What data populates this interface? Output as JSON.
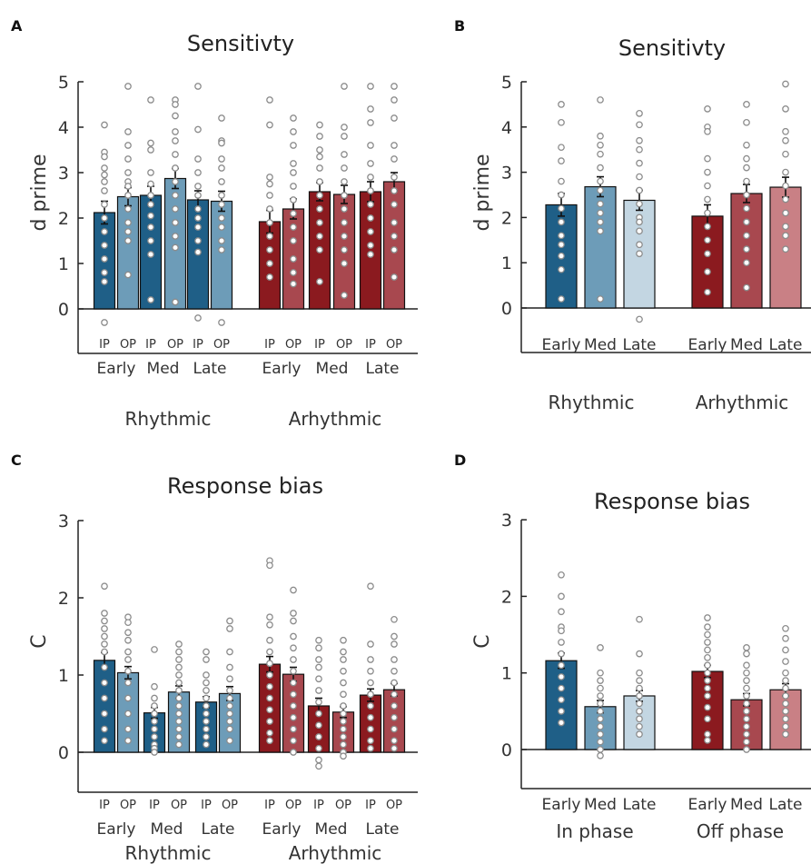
{
  "colors": {
    "rhythmic_dark": "#1f5f87",
    "rhythmic_mid": "#6d9cb8",
    "rhythmic_light": "#c3d6e2",
    "arrhythmic_dark": "#8b1a1f",
    "arrhythmic_mid": "#a8484f",
    "arrhythmic_light": "#c98085",
    "dot_stroke": "#8c8c8c"
  },
  "chart_data": [
    {
      "panel": "A",
      "type": "bar",
      "title": "Sensitivty",
      "ylabel": "d prime",
      "ylim": [
        -1,
        5
      ],
      "yticks": [
        0,
        1,
        2,
        3,
        4,
        5
      ],
      "bar_labels": [
        "IP",
        "OP",
        "IP",
        "OP",
        "IP",
        "OP",
        "IP",
        "OP",
        "IP",
        "OP",
        "IP",
        "OP"
      ],
      "subgroup_labels": [
        "Early",
        "Med",
        "Late",
        "Early",
        "Med",
        "Late"
      ],
      "group_labels": [
        "Rhythmic",
        "Arhythmic"
      ],
      "values": [
        2.12,
        2.47,
        2.5,
        2.87,
        2.4,
        2.37,
        1.92,
        2.2,
        2.58,
        2.52,
        2.58,
        2.8
      ],
      "errors": [
        0.25,
        0.2,
        0.2,
        0.22,
        0.2,
        0.22,
        0.25,
        0.22,
        0.2,
        0.2,
        0.22,
        0.2
      ],
      "points": [
        [
          4.05,
          3.45,
          3.35,
          3.1,
          2.95,
          2.8,
          2.6,
          2.3,
          2.0,
          1.7,
          1.4,
          1.1,
          0.8,
          0.6,
          -0.3
        ],
        [
          4.9,
          3.9,
          3.6,
          3.3,
          3.0,
          2.8,
          2.7,
          2.5,
          2.2,
          1.9,
          1.7,
          1.5,
          0.75
        ],
        [
          4.6,
          3.65,
          3.5,
          3.0,
          2.75,
          2.5,
          2.3,
          2.05,
          1.8,
          1.5,
          1.2,
          0.2
        ],
        [
          4.6,
          4.5,
          4.25,
          3.9,
          3.7,
          3.4,
          3.1,
          2.8,
          2.5,
          2.2,
          1.9,
          1.6,
          1.35,
          0.15
        ],
        [
          4.9,
          3.95,
          3.3,
          3.0,
          2.7,
          2.5,
          2.2,
          2.0,
          1.8,
          1.5,
          1.25,
          -0.2
        ],
        [
          4.2,
          3.7,
          3.65,
          3.3,
          3.1,
          2.8,
          2.5,
          2.3,
          2.0,
          1.8,
          1.5,
          1.3,
          -0.3
        ],
        [
          4.6,
          4.05,
          2.9,
          2.75,
          2.5,
          2.2,
          1.9,
          1.6,
          1.3,
          1.0,
          0.7
        ],
        [
          4.2,
          3.9,
          3.6,
          3.2,
          3.0,
          2.7,
          2.4,
          2.1,
          1.8,
          1.5,
          1.1,
          0.8,
          0.55
        ],
        [
          4.05,
          3.8,
          3.5,
          3.35,
          3.1,
          2.8,
          2.5,
          2.2,
          1.9,
          1.6,
          1.3,
          0.6
        ],
        [
          4.9,
          4.0,
          3.8,
          3.4,
          3.1,
          2.8,
          2.5,
          2.2,
          1.9,
          1.6,
          1.3,
          1.0,
          0.3
        ],
        [
          4.9,
          4.4,
          4.1,
          3.6,
          3.2,
          2.9,
          2.6,
          2.3,
          2.0,
          1.7,
          1.4,
          1.2
        ],
        [
          4.9,
          4.6,
          4.2,
          3.6,
          3.3,
          2.9,
          2.6,
          2.3,
          1.9,
          1.6,
          1.3,
          0.7
        ]
      ]
    },
    {
      "panel": "B",
      "type": "bar",
      "title": "Sensitivty",
      "ylim": [
        -1,
        5
      ],
      "yticks": [
        0,
        1,
        2,
        3,
        4,
        5
      ],
      "bar_labels": [
        "Early",
        "Med",
        "Late",
        "Early",
        "Med",
        "Late"
      ],
      "group_labels": [
        "Rhythmic",
        "Arhythmic"
      ],
      "values": [
        2.28,
        2.68,
        2.38,
        2.03,
        2.53,
        2.67
      ],
      "errors": [
        0.25,
        0.22,
        0.22,
        0.25,
        0.2,
        0.22
      ],
      "points": [
        [
          4.5,
          4.1,
          3.55,
          3.25,
          2.8,
          2.5,
          2.2,
          1.9,
          1.6,
          1.4,
          1.15,
          0.85,
          0.2
        ],
        [
          4.6,
          3.8,
          3.6,
          3.4,
          3.1,
          2.8,
          2.6,
          2.3,
          2.1,
          1.9,
          1.7,
          0.2
        ],
        [
          4.3,
          4.05,
          3.7,
          3.5,
          3.2,
          2.9,
          2.6,
          2.3,
          2.0,
          1.9,
          1.7,
          1.4,
          1.2,
          -0.25
        ],
        [
          4.4,
          4.0,
          3.9,
          3.3,
          3.0,
          2.7,
          2.4,
          2.1,
          1.8,
          1.5,
          1.2,
          0.8,
          0.35
        ],
        [
          4.5,
          4.1,
          3.6,
          3.3,
          3.1,
          2.8,
          2.5,
          2.2,
          1.9,
          1.6,
          1.3,
          1.0,
          0.45
        ],
        [
          4.95,
          4.4,
          3.9,
          3.7,
          3.4,
          3.0,
          2.7,
          2.4,
          2.1,
          1.8,
          1.6,
          1.3
        ]
      ]
    },
    {
      "panel": "C",
      "type": "bar",
      "title": "Response bias",
      "ylabel": "C",
      "ylim": [
        -0.5,
        3
      ],
      "yticks": [
        0,
        1,
        2,
        3
      ],
      "bar_labels": [
        "IP",
        "OP",
        "IP",
        "OP",
        "IP",
        "OP",
        "IP",
        "OP",
        "IP",
        "OP",
        "IP",
        "OP"
      ],
      "subgroup_labels": [
        "Early",
        "Med",
        "Late",
        "Early",
        "Med",
        "Late"
      ],
      "group_labels": [
        "Rhythmic",
        "Arhythmic"
      ],
      "values": [
        1.19,
        1.03,
        0.51,
        0.78,
        0.65,
        0.76,
        1.14,
        1.01,
        0.6,
        0.52,
        0.74,
        0.81
      ],
      "errors": [
        0.1,
        0.08,
        0.07,
        0.08,
        0.07,
        0.09,
        0.1,
        0.09,
        0.1,
        0.07,
        0.08,
        0.08
      ],
      "points": [
        [
          2.15,
          1.8,
          1.7,
          1.6,
          1.5,
          1.4,
          1.3,
          1.1,
          0.9,
          0.7,
          0.5,
          0.3,
          0.15
        ],
        [
          1.75,
          1.68,
          1.55,
          1.45,
          1.3,
          1.2,
          1.05,
          0.9,
          0.7,
          0.5,
          0.3,
          0.15
        ],
        [
          1.33,
          0.85,
          0.7,
          0.6,
          0.5,
          0.4,
          0.3,
          0.2,
          0.1,
          0.05,
          0.0
        ],
        [
          1.4,
          1.3,
          1.2,
          1.1,
          1.0,
          0.9,
          0.8,
          0.7,
          0.6,
          0.5,
          0.4,
          0.3,
          0.2,
          0.1
        ],
        [
          1.3,
          1.2,
          1.0,
          0.9,
          0.8,
          0.7,
          0.6,
          0.5,
          0.4,
          0.3,
          0.2,
          0.1
        ],
        [
          1.7,
          1.6,
          1.3,
          1.1,
          0.95,
          0.8,
          0.7,
          0.6,
          0.5,
          0.4,
          0.3,
          0.15
        ],
        [
          2.48,
          2.42,
          1.75,
          1.65,
          1.45,
          1.3,
          1.15,
          1.0,
          0.85,
          0.7,
          0.55,
          0.4,
          0.25,
          0.15
        ],
        [
          2.1,
          1.8,
          1.7,
          1.5,
          1.35,
          1.2,
          1.05,
          0.9,
          0.75,
          0.6,
          0.45,
          0.3,
          0.15,
          0.0
        ],
        [
          1.45,
          1.35,
          1.2,
          1.1,
          0.95,
          0.8,
          0.65,
          0.5,
          0.35,
          0.2,
          0.05,
          -0.1,
          -0.18
        ],
        [
          1.45,
          1.3,
          1.2,
          1.05,
          0.9,
          0.75,
          0.6,
          0.5,
          0.4,
          0.3,
          0.2,
          0.1,
          0.0,
          -0.05
        ],
        [
          2.15,
          1.4,
          1.2,
          1.05,
          0.9,
          0.75,
          0.6,
          0.45,
          0.3,
          0.15,
          0.05
        ],
        [
          1.72,
          1.5,
          1.4,
          1.2,
          1.05,
          0.9,
          0.75,
          0.6,
          0.45,
          0.3,
          0.15,
          0.05
        ]
      ]
    },
    {
      "panel": "D",
      "type": "bar",
      "title": "Response bias",
      "ylabel": "C",
      "ylim": [
        -0.5,
        3
      ],
      "yticks": [
        0,
        1,
        2,
        3
      ],
      "bar_labels": [
        "Early",
        "Med",
        "Late",
        "Early",
        "Med",
        "Late"
      ],
      "group_labels": [
        "In phase",
        "Off phase"
      ],
      "values": [
        1.16,
        0.56,
        0.7,
        1.02,
        0.65,
        0.78
      ],
      "errors": [
        0.1,
        0.08,
        0.07,
        0.08,
        0.08,
        0.08
      ],
      "points": [
        [
          2.28,
          2.0,
          1.8,
          1.6,
          1.55,
          1.4,
          1.25,
          1.1,
          0.95,
          0.8,
          0.65,
          0.5,
          0.35
        ],
        [
          1.33,
          1.0,
          0.9,
          0.8,
          0.7,
          0.6,
          0.5,
          0.4,
          0.3,
          0.2,
          0.1,
          0.0,
          -0.08
        ],
        [
          1.7,
          1.25,
          1.0,
          0.9,
          0.8,
          0.7,
          0.6,
          0.5,
          0.4,
          0.3,
          0.2
        ],
        [
          1.72,
          1.6,
          1.5,
          1.4,
          1.3,
          1.2,
          1.1,
          1.0,
          0.9,
          0.8,
          0.7,
          0.55,
          0.4,
          0.2,
          0.12
        ],
        [
          1.33,
          1.25,
          1.1,
          1.0,
          0.9,
          0.8,
          0.7,
          0.6,
          0.5,
          0.4,
          0.3,
          0.2,
          0.1,
          0.0
        ],
        [
          1.58,
          1.45,
          1.3,
          1.15,
          1.0,
          0.9,
          0.8,
          0.7,
          0.6,
          0.5,
          0.4,
          0.3,
          0.2
        ]
      ]
    }
  ]
}
